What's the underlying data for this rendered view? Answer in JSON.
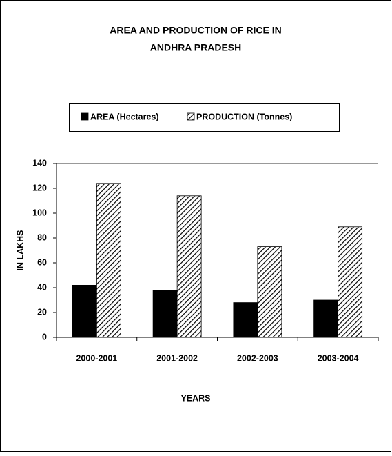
{
  "chart_data": {
    "type": "bar",
    "title": [
      "AREA AND PRODUCTION OF RICE IN",
      "ANDHRA PRADESH"
    ],
    "x_label": "YEARS",
    "y_label": "IN LAKHS",
    "categories": [
      "2000-2001",
      "2001-2002",
      "2002-2003",
      "2003-2004"
    ],
    "series": [
      {
        "name": "AREA (Hectares)",
        "color": "#000000",
        "pattern": "solid",
        "values": [
          42,
          38,
          28,
          30
        ]
      },
      {
        "name": "PRODUCTION (Tonnes)",
        "color": "#000000",
        "pattern": "hatch",
        "values": [
          124,
          114,
          73,
          89
        ]
      }
    ],
    "ylim": [
      0,
      140
    ],
    "yticks": [
      0,
      20,
      40,
      60,
      80,
      100,
      120,
      140
    ],
    "grid": false,
    "legend": "top"
  }
}
